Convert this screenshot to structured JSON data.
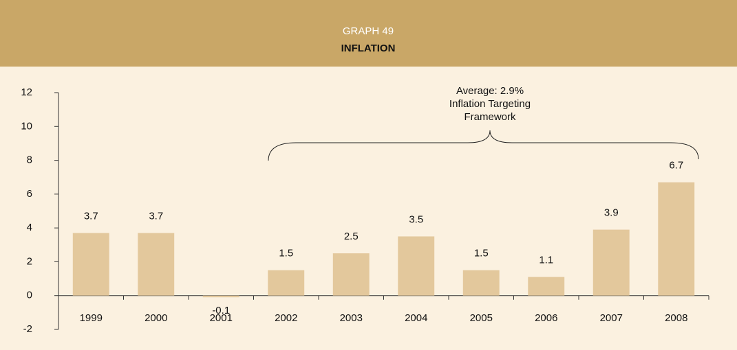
{
  "chart_data": {
    "type": "bar",
    "title": "GRAPH 49",
    "subtitle": "INFLATION",
    "annotation": [
      "Average: 2.9%",
      "Inflation Targeting",
      "Framework"
    ],
    "categories": [
      "1999",
      "2000",
      "2001",
      "2002",
      "2003",
      "2004",
      "2005",
      "2006",
      "2007",
      "2008"
    ],
    "values": [
      3.7,
      3.7,
      -0.1,
      1.5,
      2.5,
      3.5,
      1.5,
      1.1,
      3.9,
      6.7
    ],
    "color": "#e3c89c",
    "ylim": [
      -2,
      12
    ],
    "yticks": [
      -2,
      0,
      2,
      4,
      6,
      8,
      10,
      12
    ],
    "grid": false
  }
}
